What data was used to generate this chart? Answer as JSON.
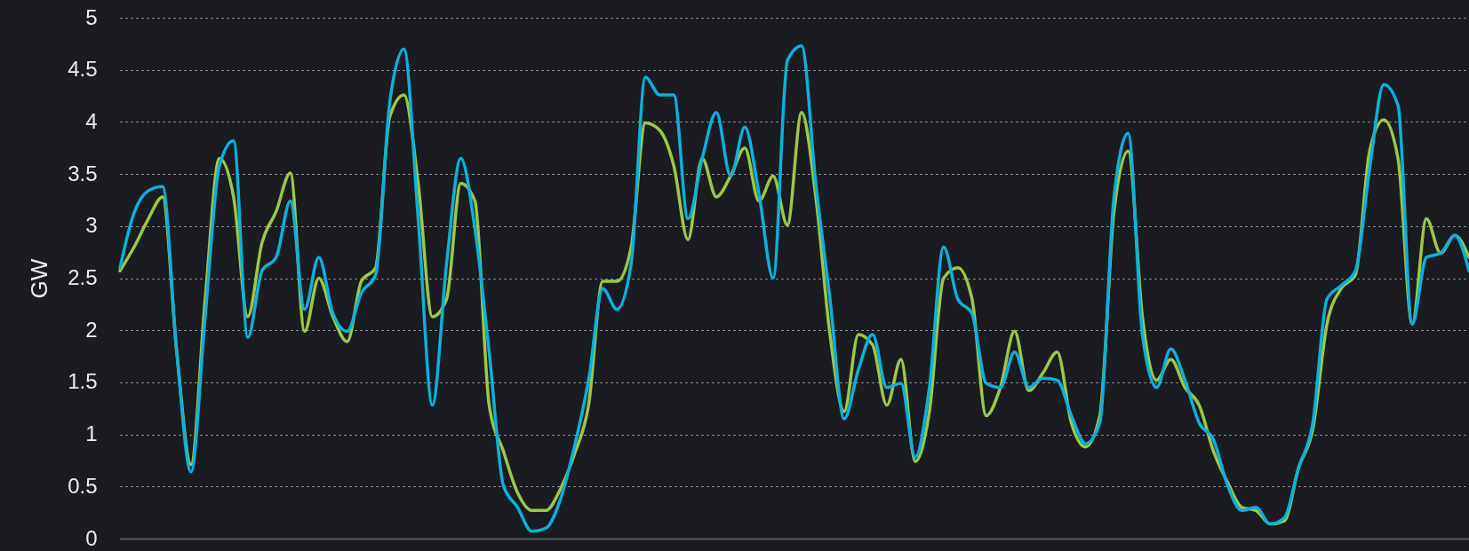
{
  "chart_data": {
    "type": "line",
    "ylabel": "GW",
    "ylim": [
      0,
      5
    ],
    "yticks": [
      0,
      0.5,
      1,
      1.5,
      2,
      2.5,
      3,
      3.5,
      4,
      4.5,
      5
    ],
    "grid": "y",
    "tick_labels": "y",
    "categories": [
      null,
      null,
      null,
      null,
      null,
      null,
      null,
      null,
      null,
      null,
      null,
      null,
      null,
      null,
      null,
      null,
      null,
      null,
      null,
      null,
      null,
      null,
      null,
      null,
      null,
      null,
      null,
      null,
      null,
      null,
      null,
      null,
      null,
      null,
      null,
      null,
      null,
      null,
      null,
      null,
      null,
      null,
      null,
      null,
      null,
      null,
      null,
      null,
      null,
      null,
      null,
      null,
      null,
      null,
      null,
      null,
      null,
      null,
      null,
      null,
      null,
      null,
      null,
      null,
      null,
      null,
      null,
      null,
      null,
      null,
      null,
      null,
      null,
      null,
      null,
      null,
      null,
      null,
      null,
      null,
      null,
      null,
      null,
      null,
      null,
      null,
      null,
      null,
      null,
      null,
      null,
      null,
      null,
      null,
      null,
      null
    ],
    "series": [
      {
        "color": "#9ac947",
        "values": [
          2.57,
          2.8,
          3.07,
          3.28,
          1.79,
          0.71,
          2.3,
          3.65,
          3.28,
          2.13,
          2.84,
          3.14,
          3.51,
          1.99,
          2.5,
          2.13,
          1.89,
          2.47,
          2.6,
          4.05,
          4.26,
          3.41,
          2.13,
          2.3,
          3.41,
          3.24,
          1.28,
          0.84,
          0.44,
          0.27,
          0.27,
          0.47,
          0.81,
          1.28,
          2.47,
          2.47,
          2.8,
          3.99,
          3.92,
          3.58,
          2.87,
          3.65,
          3.28,
          3.48,
          3.75,
          3.24,
          3.48,
          3.01,
          4.09,
          3.28,
          1.96,
          1.22,
          1.96,
          1.86,
          1.28,
          1.72,
          0.74,
          1.22,
          2.5,
          2.6,
          2.3,
          1.18,
          1.45,
          1.99,
          1.42,
          1.59,
          1.79,
          1.11,
          0.88,
          1.18,
          3.14,
          3.72,
          2.13,
          1.52,
          1.72,
          1.45,
          1.28,
          0.84,
          0.54,
          0.3,
          0.27,
          0.14,
          0.17,
          0.68,
          1.05,
          2.06,
          2.4,
          2.53,
          3.72,
          4.02,
          3.65,
          2.06,
          3.07,
          2.74,
          2.91,
          2.7
        ]
      },
      {
        "color": "#0db0da",
        "values": [
          2.6,
          3.13,
          3.34,
          3.38,
          1.79,
          0.64,
          2.13,
          3.58,
          3.82,
          1.93,
          2.57,
          2.7,
          3.24,
          2.2,
          2.7,
          2.16,
          1.99,
          2.36,
          2.53,
          4.19,
          4.7,
          3.07,
          1.28,
          2.64,
          3.65,
          2.97,
          1.79,
          0.51,
          0.3,
          0.07,
          0.1,
          0.37,
          0.88,
          1.52,
          2.4,
          2.2,
          2.64,
          4.43,
          4.26,
          4.26,
          3.07,
          3.65,
          4.09,
          3.48,
          3.95,
          3.31,
          2.5,
          4.59,
          4.73,
          3.41,
          2.3,
          1.15,
          1.62,
          1.96,
          1.45,
          1.49,
          0.78,
          1.45,
          2.8,
          2.3,
          2.16,
          1.49,
          1.45,
          1.79,
          1.45,
          1.54,
          1.52,
          1.18,
          0.91,
          1.11,
          3.28,
          3.89,
          1.96,
          1.45,
          1.82,
          1.52,
          1.11,
          0.95,
          0.51,
          0.27,
          0.3,
          0.14,
          0.2,
          0.68,
          1.11,
          2.3,
          2.43,
          2.57,
          3.55,
          4.36,
          4.16,
          2.06,
          2.7,
          2.74,
          2.91,
          2.57
        ]
      }
    ]
  }
}
